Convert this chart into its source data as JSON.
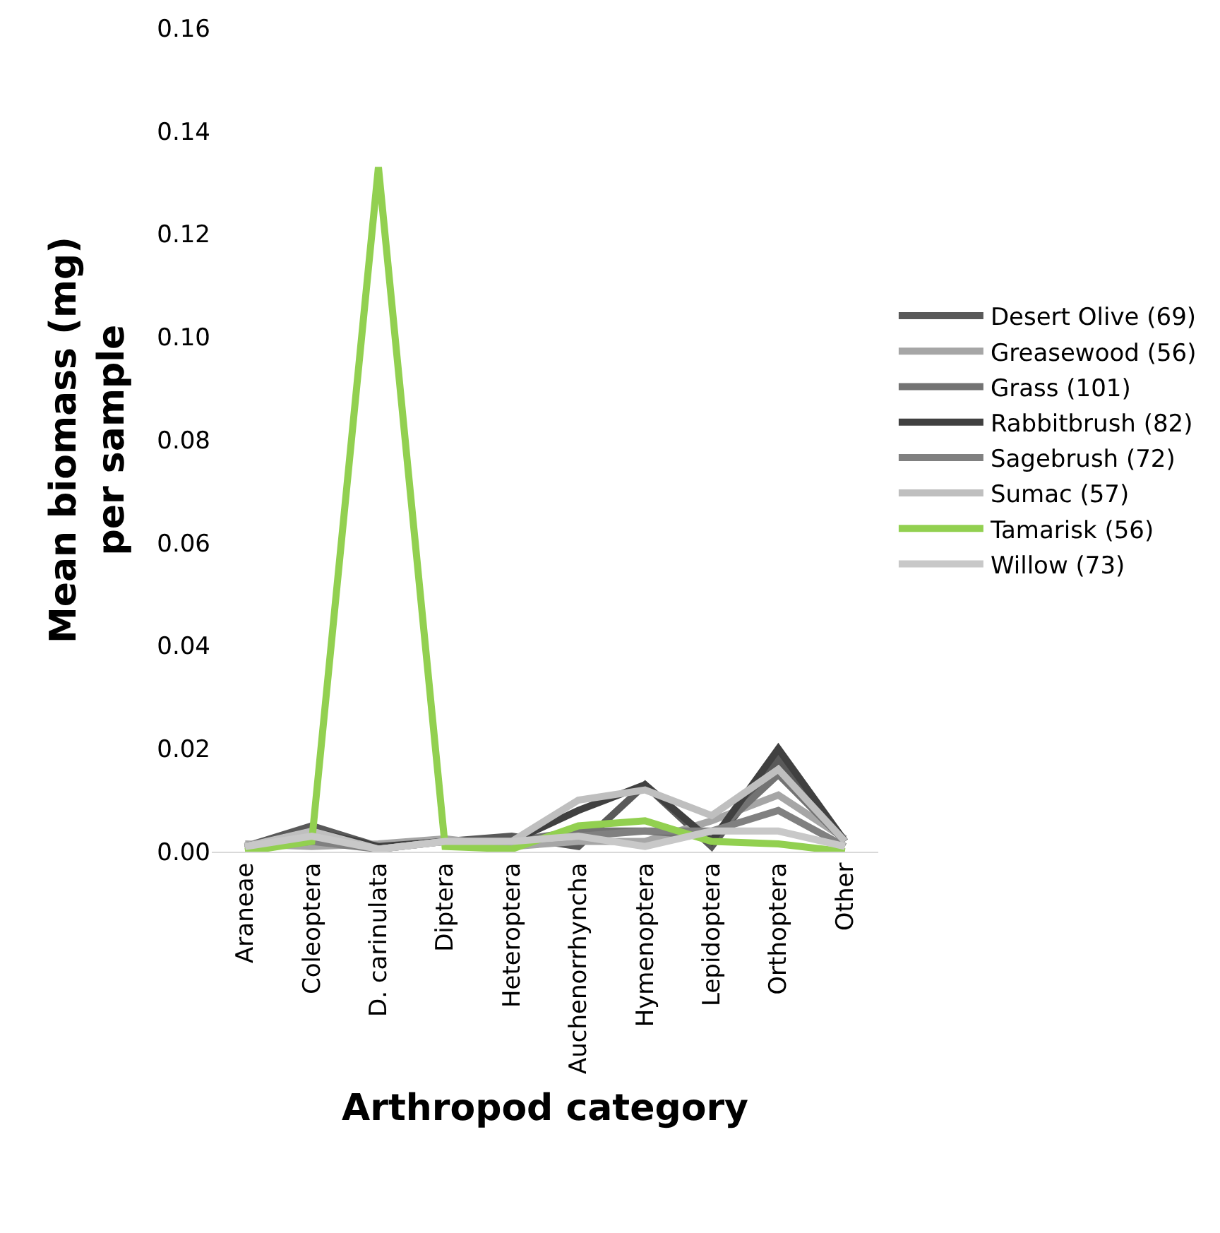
{
  "chart_data": {
    "type": "line",
    "xlabel": "Arthropod category",
    "ylabel": "Mean biomass (mg)\nper sample",
    "categories": [
      "Araneae",
      "Coleoptera",
      "D. carinulata",
      "Diptera",
      "Heteroptera",
      "Auchenorrhyncha",
      "Hymenoptera",
      "Lepidoptera",
      "Orthoptera",
      "Other"
    ],
    "ylim": [
      0,
      0.16
    ],
    "yticks": [
      {
        "value": 0,
        "label": "0.00"
      },
      {
        "value": 0.02,
        "label": "0.02"
      },
      {
        "value": 0.04,
        "label": "0.04"
      },
      {
        "value": 0.06,
        "label": "0.06"
      },
      {
        "value": 0.08,
        "label": "0.08"
      },
      {
        "value": 0.1,
        "label": "0.10"
      },
      {
        "value": 0.12,
        "label": "0.12"
      },
      {
        "value": 0.14,
        "label": "0.14"
      },
      {
        "value": 0.16,
        "label": "0.16"
      }
    ],
    "legend": "right",
    "series": [
      {
        "name": "Desert Olive (69)",
        "color": "#595959",
        "values": [
          0.001,
          0.005,
          0.001,
          0.002,
          0.003,
          0.001,
          0.013,
          0.001,
          0.018,
          0.002
        ]
      },
      {
        "name": "Greasewood (56)",
        "color": "#a6a6a6",
        "values": [
          0.0015,
          0.001,
          0.0015,
          0.0025,
          0.001,
          0.002,
          0.002,
          0.006,
          0.011,
          0.0025
        ]
      },
      {
        "name": "Grass (101)",
        "color": "#737373",
        "values": [
          0.0005,
          0.003,
          0.0005,
          0.002,
          0.002,
          0.004,
          0.004,
          0.003,
          0.015,
          0.002
        ]
      },
      {
        "name": "Rabbitbrush (82)",
        "color": "#404040",
        "values": [
          0.001,
          0.004,
          0.001,
          0.002,
          0.002,
          0.008,
          0.013,
          0.002,
          0.02,
          0.002
        ]
      },
      {
        "name": "Sagebrush (72)",
        "color": "#808080",
        "values": [
          0.0005,
          0.002,
          0.0005,
          0.002,
          0.002,
          0.003,
          0.004,
          0.004,
          0.008,
          0.001
        ]
      },
      {
        "name": "Sumac (57)",
        "color": "#bfbfbf",
        "values": [
          0.001,
          0.004,
          0.0005,
          0.002,
          0.002,
          0.01,
          0.012,
          0.007,
          0.016,
          0.002
        ]
      },
      {
        "name": "Tamarisk (56)",
        "color": "#92d050",
        "values": [
          0,
          0.002,
          0.133,
          0.001,
          0.0005,
          0.005,
          0.006,
          0.002,
          0.0015,
          0
        ]
      },
      {
        "name": "Willow (73)",
        "color": "#c8c8c8",
        "values": [
          0.001,
          0.003,
          0.0005,
          0.002,
          0.002,
          0.003,
          0.001,
          0.004,
          0.004,
          0.001
        ]
      }
    ]
  }
}
